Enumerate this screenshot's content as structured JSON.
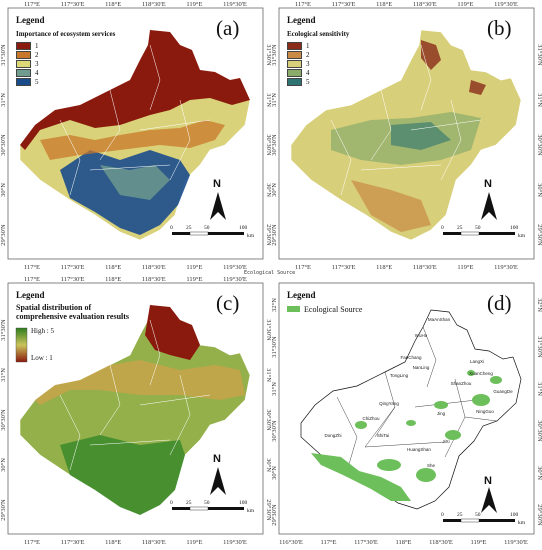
{
  "ticks": {
    "lon_top_left": [
      "117°E",
      "117°30'E",
      "118°E",
      "118°30'E",
      "119°E",
      "119°30'E"
    ],
    "lon_bottom_left": [
      "117°E",
      "117°30'E",
      "118°E",
      "118°30'E",
      "119°E",
      "119°30'E"
    ],
    "lon_bottom_d": [
      "116°30'E",
      "117°E",
      "117°30'E",
      "118°E",
      "118°30'E",
      "119°E",
      "119°30'E"
    ],
    "lat_left": [
      "31°30'N",
      "31°N",
      "30°30'N",
      "30°N",
      "29°30'N"
    ],
    "lat_left_d": [
      "32°N",
      "31°30'N",
      "31°N",
      "30°30'N",
      "30°N",
      "29°30'N"
    ]
  },
  "panels": {
    "a": {
      "label": "(a)",
      "legend_title": "Legend",
      "legend_subtitle": "Importance of ecosystem services",
      "classes": [
        {
          "label": "1",
          "color": "#8b1a0e"
        },
        {
          "label": "2",
          "color": "#c8782a"
        },
        {
          "label": "3",
          "color": "#dcd777"
        },
        {
          "label": "4",
          "color": "#6f9c8e"
        },
        {
          "label": "5",
          "color": "#1a4c8c"
        }
      ]
    },
    "b": {
      "label": "(b)",
      "legend_title": "Legend",
      "legend_subtitle": "Ecological sensitivity",
      "classes": [
        {
          "label": "1",
          "color": "#8b2c1a"
        },
        {
          "label": "2",
          "color": "#c98a45"
        },
        {
          "label": "3",
          "color": "#d8cf7a"
        },
        {
          "label": "4",
          "color": "#8aab6a"
        },
        {
          "label": "5",
          "color": "#2e7472"
        }
      ]
    },
    "c": {
      "label": "(c)",
      "legend_title": "Legend",
      "legend_subtitle_1": "Spatial distribution of",
      "legend_subtitle_2": "comprehensive evaluation results",
      "high_label": "High : 5",
      "low_label": "Low : 1",
      "ramp_top": "#2e7d1f",
      "ramp_bottom": "#8b1a0e"
    },
    "d": {
      "label": "(d)",
      "legend_title": "Legend",
      "legend_item": "Ecological Source",
      "source_color": "#6cbf5a",
      "cities": [
        "MaAnShan",
        "WuHu",
        "XuanCheng",
        "GuangDe",
        "LangXi",
        "ChiZhou",
        "TongLing",
        "DongZhi",
        "ShiTai",
        "QingYang",
        "HuangShan",
        "JiXi",
        "She",
        "NingGuo",
        "Jing",
        "ShanZhou",
        "NanLing",
        "FanChang"
      ]
    }
  },
  "caption_between": "Ecological Source",
  "north_label": "N",
  "scale": {
    "labels": [
      "0",
      "25",
      "50",
      "100"
    ],
    "unit": "km"
  }
}
